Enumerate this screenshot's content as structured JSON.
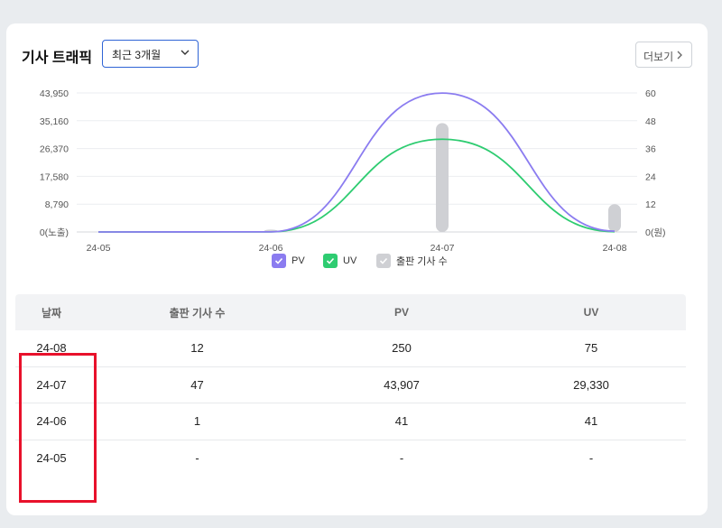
{
  "header": {
    "title": "기사 트래픽",
    "period_selected": "최근 3개월",
    "more_label": "더보기"
  },
  "colors": {
    "pv": "#8b7cf0",
    "uv": "#2ecc71",
    "articles": "#cfd0d4",
    "highlight": "#e8112b"
  },
  "chart_data": {
    "type": "line",
    "categories": [
      "24-05",
      "24-06",
      "24-07",
      "24-08"
    ],
    "left_axis": {
      "ticks": [
        "0(노출)",
        "8,790",
        "17,580",
        "26,370",
        "35,160",
        "43,950"
      ],
      "ylim": [
        0,
        43950
      ]
    },
    "right_axis": {
      "ticks": [
        "0(원)",
        "12",
        "24",
        "36",
        "48",
        "60"
      ],
      "ylim": [
        0,
        60
      ]
    },
    "series": [
      {
        "name": "PV",
        "axis": "left",
        "values": [
          0,
          41,
          43907,
          250
        ]
      },
      {
        "name": "UV",
        "axis": "left",
        "values": [
          0,
          41,
          29330,
          75
        ]
      },
      {
        "name": "출판 기사 수",
        "type": "bar",
        "axis": "right",
        "values": [
          0,
          1,
          47,
          12
        ]
      }
    ],
    "legend": {
      "placement": "bottom"
    },
    "grid": true
  },
  "table": {
    "headers": [
      "날짜",
      "출판 기사 수",
      "PV",
      "UV"
    ],
    "rows": [
      [
        "24-08",
        "12",
        "250",
        "75"
      ],
      [
        "24-07",
        "47",
        "43,907",
        "29,330"
      ],
      [
        "24-06",
        "1",
        "41",
        "41"
      ],
      [
        "24-05",
        "-",
        "-",
        "-"
      ]
    ]
  }
}
